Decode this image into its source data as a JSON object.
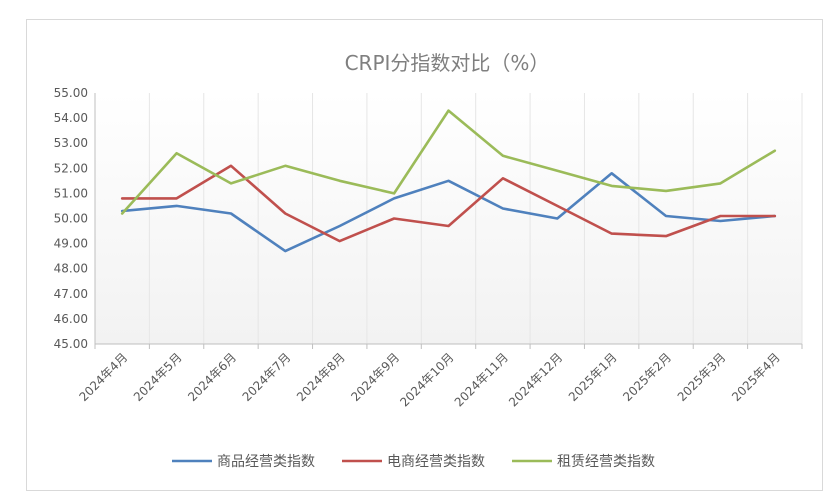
{
  "chart_data": {
    "type": "line",
    "title": "CRPI分指数对比（%）",
    "xlabel": "",
    "ylabel": "",
    "ylim": [
      45.0,
      55.0
    ],
    "ytick_step": 1.0,
    "y_tick_labels": [
      "45.00",
      "46.00",
      "47.00",
      "48.00",
      "49.00",
      "50.00",
      "51.00",
      "52.00",
      "53.00",
      "54.00",
      "55.00"
    ],
    "grid": "vertical",
    "legend_position": "bottom",
    "categories": [
      "2024年4月",
      "2024年5月",
      "2024年6月",
      "2024年7月",
      "2024年8月",
      "2024年9月",
      "2024年10月",
      "2024年11月",
      "2024年12月",
      "2025年1月",
      "2025年2月",
      "2025年3月",
      "2025年4月"
    ],
    "series": [
      {
        "name": "商品经营类指数",
        "color": "#4F81BD",
        "values": [
          50.3,
          50.5,
          50.2,
          48.7,
          49.7,
          50.8,
          51.5,
          50.4,
          50.0,
          51.8,
          50.1,
          49.9,
          50.1
        ]
      },
      {
        "name": "电商经营类指数",
        "color": "#C0504D",
        "values": [
          50.8,
          50.8,
          52.1,
          50.2,
          49.1,
          50.0,
          49.7,
          51.6,
          50.5,
          49.4,
          49.3,
          50.1,
          50.1
        ]
      },
      {
        "name": "租赁经营类指数",
        "color": "#9BBB59",
        "values": [
          50.2,
          52.6,
          51.4,
          52.1,
          51.5,
          51.0,
          54.3,
          52.5,
          51.9,
          51.3,
          51.1,
          51.4,
          52.7
        ]
      }
    ]
  }
}
